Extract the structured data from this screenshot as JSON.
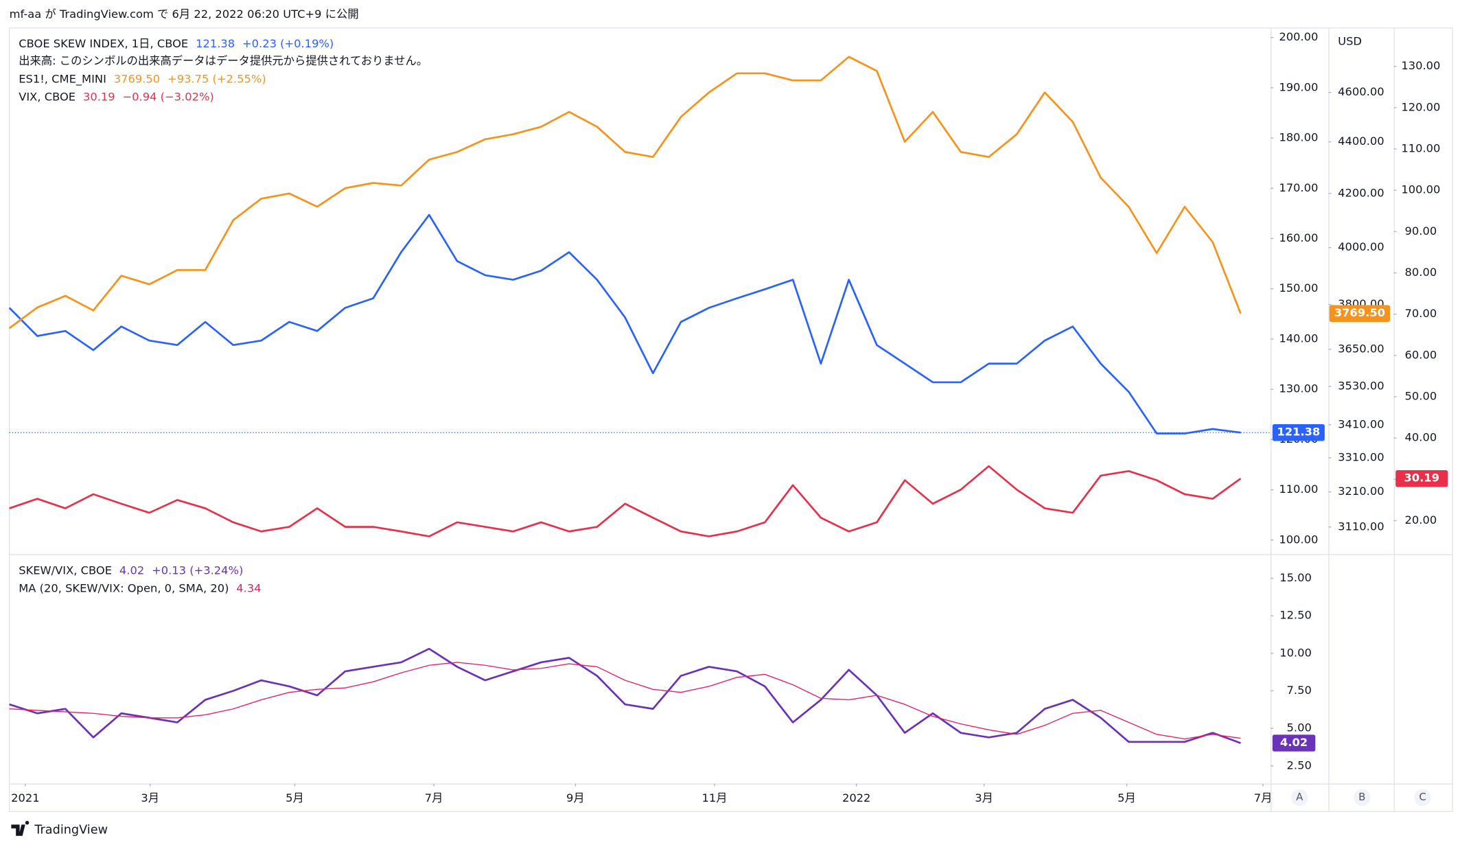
{
  "header": "mf-aa が TradingView.com で 6月 22, 2022 06:20 UTC+9 に公開",
  "footer": "TradingView",
  "unit": "USD",
  "buttons": [
    "A",
    "B",
    "C"
  ],
  "chart_data": [
    {
      "type": "line",
      "volume_note": "出来高: このシンボルの出来高データはデータ提供元から提供されておりません。",
      "x": [
        0,
        1,
        2,
        3,
        4,
        5,
        6,
        7,
        8,
        9,
        10,
        11,
        12,
        13,
        14,
        15,
        16,
        17,
        18,
        19,
        20,
        21,
        22,
        23,
        24,
        25,
        26,
        27,
        28,
        29,
        30,
        31,
        32,
        33,
        34,
        35,
        36,
        37,
        38,
        39,
        40,
        41,
        42,
        43,
        44
      ],
      "xlim": [
        0,
        45.07
      ],
      "ylim": [
        97.2,
        201.9
      ],
      "yticks": [
        {
          "value": 100,
          "label": "100.00"
        },
        {
          "value": 110,
          "label": "110.00"
        },
        {
          "value": 120,
          "label": "120.00"
        },
        {
          "value": 130,
          "label": "130.00"
        },
        {
          "value": 140,
          "label": "140.00"
        },
        {
          "value": 150,
          "label": "150.00"
        },
        {
          "value": 160,
          "label": "160.00"
        },
        {
          "value": 170,
          "label": "170.00"
        },
        {
          "value": 180,
          "label": "180.00"
        },
        {
          "value": 190,
          "label": "190.00"
        },
        {
          "value": 200,
          "label": "200.00"
        }
      ],
      "y2lim": [
        3035,
        4875
      ],
      "y2log": true,
      "y2ticks": [
        {
          "value": 3110,
          "label": "3110.00"
        },
        {
          "value": 3210,
          "label": "3210.00"
        },
        {
          "value": 3310,
          "label": "3310.00"
        },
        {
          "value": 3410,
          "label": "3410.00"
        },
        {
          "value": 3530,
          "label": "3530.00"
        },
        {
          "value": 3650,
          "label": "3650.00"
        },
        {
          "value": 3800,
          "label": "3800.00"
        },
        {
          "value": 4000,
          "label": "4000.00"
        },
        {
          "value": 4200,
          "label": "4200.00"
        },
        {
          "value": 4400,
          "label": "4400.00"
        },
        {
          "value": 4600,
          "label": "4600.00"
        }
      ],
      "y3lim": [
        11.9,
        139.3
      ],
      "y3ticks": [
        {
          "value": 20,
          "label": "20.00"
        },
        {
          "value": 30,
          "label": "30.00"
        },
        {
          "value": 40,
          "label": "40.00"
        },
        {
          "value": 50,
          "label": "50.00"
        },
        {
          "value": 60,
          "label": "60.00"
        },
        {
          "value": 70,
          "label": "70.00"
        },
        {
          "value": 80,
          "label": "80.00"
        },
        {
          "value": 90,
          "label": "90.00"
        },
        {
          "value": 100,
          "label": "100.00"
        },
        {
          "value": 110,
          "label": "110.00"
        },
        {
          "value": 120,
          "label": "120.00"
        },
        {
          "value": 130,
          "label": "130.00"
        }
      ],
      "series": [
        {
          "name": "CBOE SKEW INDEX, 1日, CBOE",
          "color": "#2962ff",
          "axis": "y",
          "last_label": "121.38",
          "change_label": "+0.23 (+0.19%)",
          "values": [
            146.2,
            140.6,
            141.6,
            137.8,
            142.5,
            139.7,
            138.8,
            143.4,
            138.8,
            139.7,
            143.4,
            141.6,
            146.2,
            148.1,
            157.3,
            164.7,
            155.5,
            152.7,
            151.8,
            153.6,
            157.3,
            151.8,
            144.3,
            133.2,
            143.4,
            146.2,
            148.1,
            149.9,
            151.8,
            135.1,
            151.8,
            138.8,
            135.1,
            131.4,
            131.4,
            135.1,
            135.1,
            139.7,
            142.5,
            135.1,
            129.5,
            121.2,
            121.2,
            122.1,
            121.38
          ]
        },
        {
          "name": "ES1!, CME_MINI",
          "color": "#f7931a",
          "axis": "y2",
          "last_label": "3769.50",
          "change_label": "+93.75 (+2.55%)",
          "values": [
            3720,
            3790,
            3830,
            3780,
            3900,
            3870,
            3920,
            3920,
            4100,
            4180,
            4200,
            4150,
            4220,
            4240,
            4230,
            4330,
            4360,
            4410,
            4430,
            4460,
            4520,
            4460,
            4360,
            4340,
            4500,
            4600,
            4680,
            4680,
            4650,
            4650,
            4750,
            4690,
            4400,
            4520,
            4360,
            4340,
            4430,
            4600,
            4480,
            4260,
            4150,
            3980,
            4150,
            4020,
            3769.5
          ]
        },
        {
          "name": "VIX, CBOE",
          "color": "#e8304a",
          "axis": "y3",
          "last_label": "30.19",
          "change_label": "−0.94 (−3.02%)",
          "values": [
            23.0,
            25.3,
            23.0,
            26.4,
            24.1,
            21.9,
            25.0,
            23.0,
            19.6,
            17.4,
            18.5,
            23.0,
            18.5,
            18.5,
            17.4,
            16.2,
            19.6,
            18.5,
            17.4,
            19.6,
            17.4,
            18.5,
            24.1,
            20.7,
            17.4,
            16.2,
            17.4,
            19.6,
            28.6,
            20.7,
            17.4,
            19.6,
            29.8,
            24.1,
            27.5,
            33.2,
            27.5,
            23.0,
            21.9,
            30.9,
            32.0,
            29.8,
            26.4,
            25.3,
            30.19
          ]
        }
      ]
    },
    {
      "type": "line",
      "x": [
        0,
        1,
        2,
        3,
        4,
        5,
        6,
        7,
        8,
        9,
        10,
        11,
        12,
        13,
        14,
        15,
        16,
        17,
        18,
        19,
        20,
        21,
        22,
        23,
        24,
        25,
        26,
        27,
        28,
        29,
        30,
        31,
        32,
        33,
        34,
        35,
        36,
        37,
        38,
        39,
        40,
        41,
        42,
        43,
        44
      ],
      "xlim": [
        0,
        45.07
      ],
      "xticks": [
        {
          "value": 0.57,
          "label": "2021"
        },
        {
          "value": 5.03,
          "label": "3月"
        },
        {
          "value": 10.2,
          "label": "5月"
        },
        {
          "value": 15.17,
          "label": "7月"
        },
        {
          "value": 20.23,
          "label": "9月"
        },
        {
          "value": 25.2,
          "label": "11月"
        },
        {
          "value": 30.27,
          "label": "2022"
        },
        {
          "value": 34.83,
          "label": "3月"
        },
        {
          "value": 39.93,
          "label": "5月"
        },
        {
          "value": 44.8,
          "label": "7月"
        }
      ],
      "ylim": [
        1.32,
        16.55
      ],
      "yticks": [
        {
          "value": 2.5,
          "label": "2.50"
        },
        {
          "value": 5,
          "label": "5.00"
        },
        {
          "value": 7.5,
          "label": "7.50"
        },
        {
          "value": 10,
          "label": "10.00"
        },
        {
          "value": 12.5,
          "label": "12.50"
        },
        {
          "value": 15,
          "label": "15.00"
        }
      ],
      "series": [
        {
          "name": "SKEW/VIX, CBOE",
          "color": "#6a32b8",
          "axis": "y",
          "last_label": "4.02",
          "change_label": "+0.13 (+3.24%)",
          "values": [
            6.6,
            6.0,
            6.3,
            4.4,
            6.0,
            5.7,
            5.4,
            6.9,
            7.5,
            8.2,
            7.8,
            7.2,
            8.8,
            9.1,
            9.4,
            10.3,
            9.1,
            8.2,
            8.8,
            9.4,
            9.7,
            8.5,
            6.6,
            6.3,
            8.5,
            9.1,
            8.8,
            7.8,
            5.4,
            6.9,
            8.9,
            7.2,
            4.7,
            6.0,
            4.7,
            4.4,
            4.7,
            6.3,
            6.9,
            5.7,
            4.1,
            4.1,
            4.1,
            4.7,
            4.02
          ]
        },
        {
          "name": "MA (20, SKEW/VIX: Open, 0, SMA, 20)",
          "color": "#e91e63",
          "axis": "y",
          "last_label": "4.34",
          "values": [
            6.3,
            6.2,
            6.1,
            6.0,
            5.8,
            5.7,
            5.7,
            5.9,
            6.3,
            6.9,
            7.4,
            7.6,
            7.7,
            8.1,
            8.7,
            9.2,
            9.4,
            9.2,
            8.9,
            9.0,
            9.3,
            9.1,
            8.2,
            7.6,
            7.4,
            7.8,
            8.4,
            8.6,
            7.9,
            7.0,
            6.9,
            7.2,
            6.6,
            5.8,
            5.3,
            4.9,
            4.6,
            5.2,
            6.0,
            6.2,
            5.4,
            4.6,
            4.3,
            4.6,
            4.34
          ]
        }
      ]
    }
  ]
}
